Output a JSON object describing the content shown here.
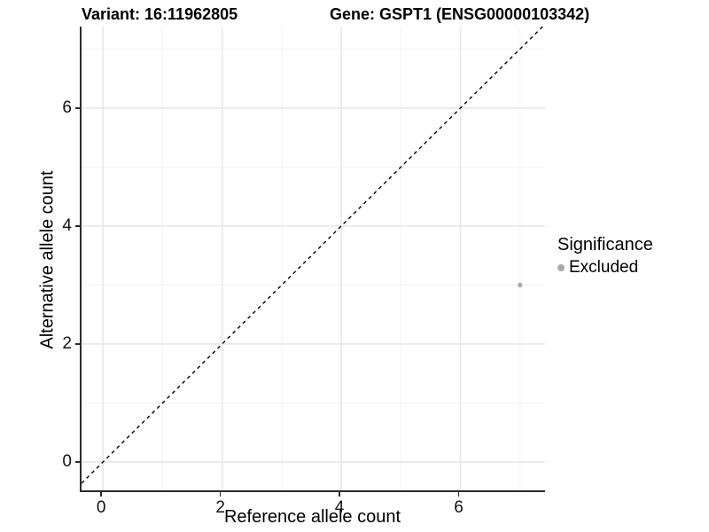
{
  "chart_data": {
    "type": "scatter",
    "title_left": "Variant: 16:11962805",
    "title_right": "Gene: GSPT1 (ENSG00000103342)",
    "xlabel": "Reference allele count",
    "ylabel": "Alternative allele count",
    "xlim": [
      -0.36,
      7.42
    ],
    "ylim": [
      -0.48,
      7.38
    ],
    "x_ticks": [
      0,
      2,
      4,
      6
    ],
    "y_ticks": [
      0,
      2,
      4,
      6
    ],
    "x_minor_gridlines": [
      1,
      3,
      5,
      7
    ],
    "y_minor_gridlines": [
      1,
      3,
      5,
      7
    ],
    "grid": true,
    "major_grid_color": "#e8e8e8",
    "minor_grid_color": "#f3f3f3",
    "axis_line_color": "#2b2b2b",
    "reference_line": {
      "kind": "identity",
      "slope": 1,
      "intercept": 0,
      "style": "dashed",
      "color": "#000000"
    },
    "series": [
      {
        "name": "Excluded",
        "color": "#aaaaaa",
        "point_radius": 2.7,
        "points": [
          {
            "x": 7,
            "y": 3
          }
        ]
      }
    ],
    "legend": {
      "title": "Significance",
      "position": "right",
      "items": [
        {
          "label": "Excluded",
          "color": "#aaaaaa"
        }
      ]
    }
  }
}
